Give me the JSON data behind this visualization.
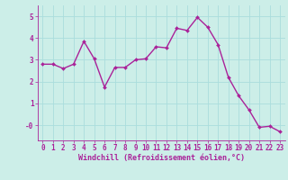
{
  "x": [
    0,
    1,
    2,
    3,
    4,
    5,
    6,
    7,
    8,
    9,
    10,
    11,
    12,
    13,
    14,
    15,
    16,
    17,
    18,
    19,
    20,
    21,
    22,
    23
  ],
  "y": [
    2.8,
    2.8,
    2.6,
    2.8,
    3.85,
    3.05,
    1.75,
    2.65,
    2.65,
    3.0,
    3.05,
    3.6,
    3.55,
    4.45,
    4.35,
    4.95,
    4.5,
    3.7,
    2.2,
    1.35,
    0.7,
    -0.1,
    -0.05,
    -0.3
  ],
  "line_color": "#aa2299",
  "marker": "D",
  "marker_size": 2,
  "bg_color": "#cceee8",
  "grid_color": "#aadddd",
  "xlabel": "Windchill (Refroidissement éolien,°C)",
  "xlabel_color": "#aa2299",
  "tick_color": "#aa2299",
  "ylim": [
    -0.7,
    5.5
  ],
  "xlim": [
    -0.5,
    23.5
  ],
  "xticks": [
    0,
    1,
    2,
    3,
    4,
    5,
    6,
    7,
    8,
    9,
    10,
    11,
    12,
    13,
    14,
    15,
    16,
    17,
    18,
    19,
    20,
    21,
    22,
    23
  ],
  "ytick_vals": [
    0,
    1,
    2,
    3,
    4,
    5
  ],
  "ytick_labels": [
    "-0",
    "1",
    "2",
    "3",
    "4",
    "5"
  ],
  "line_width": 1.0,
  "tick_fontsize": 5.5,
  "xlabel_fontsize": 6.0
}
